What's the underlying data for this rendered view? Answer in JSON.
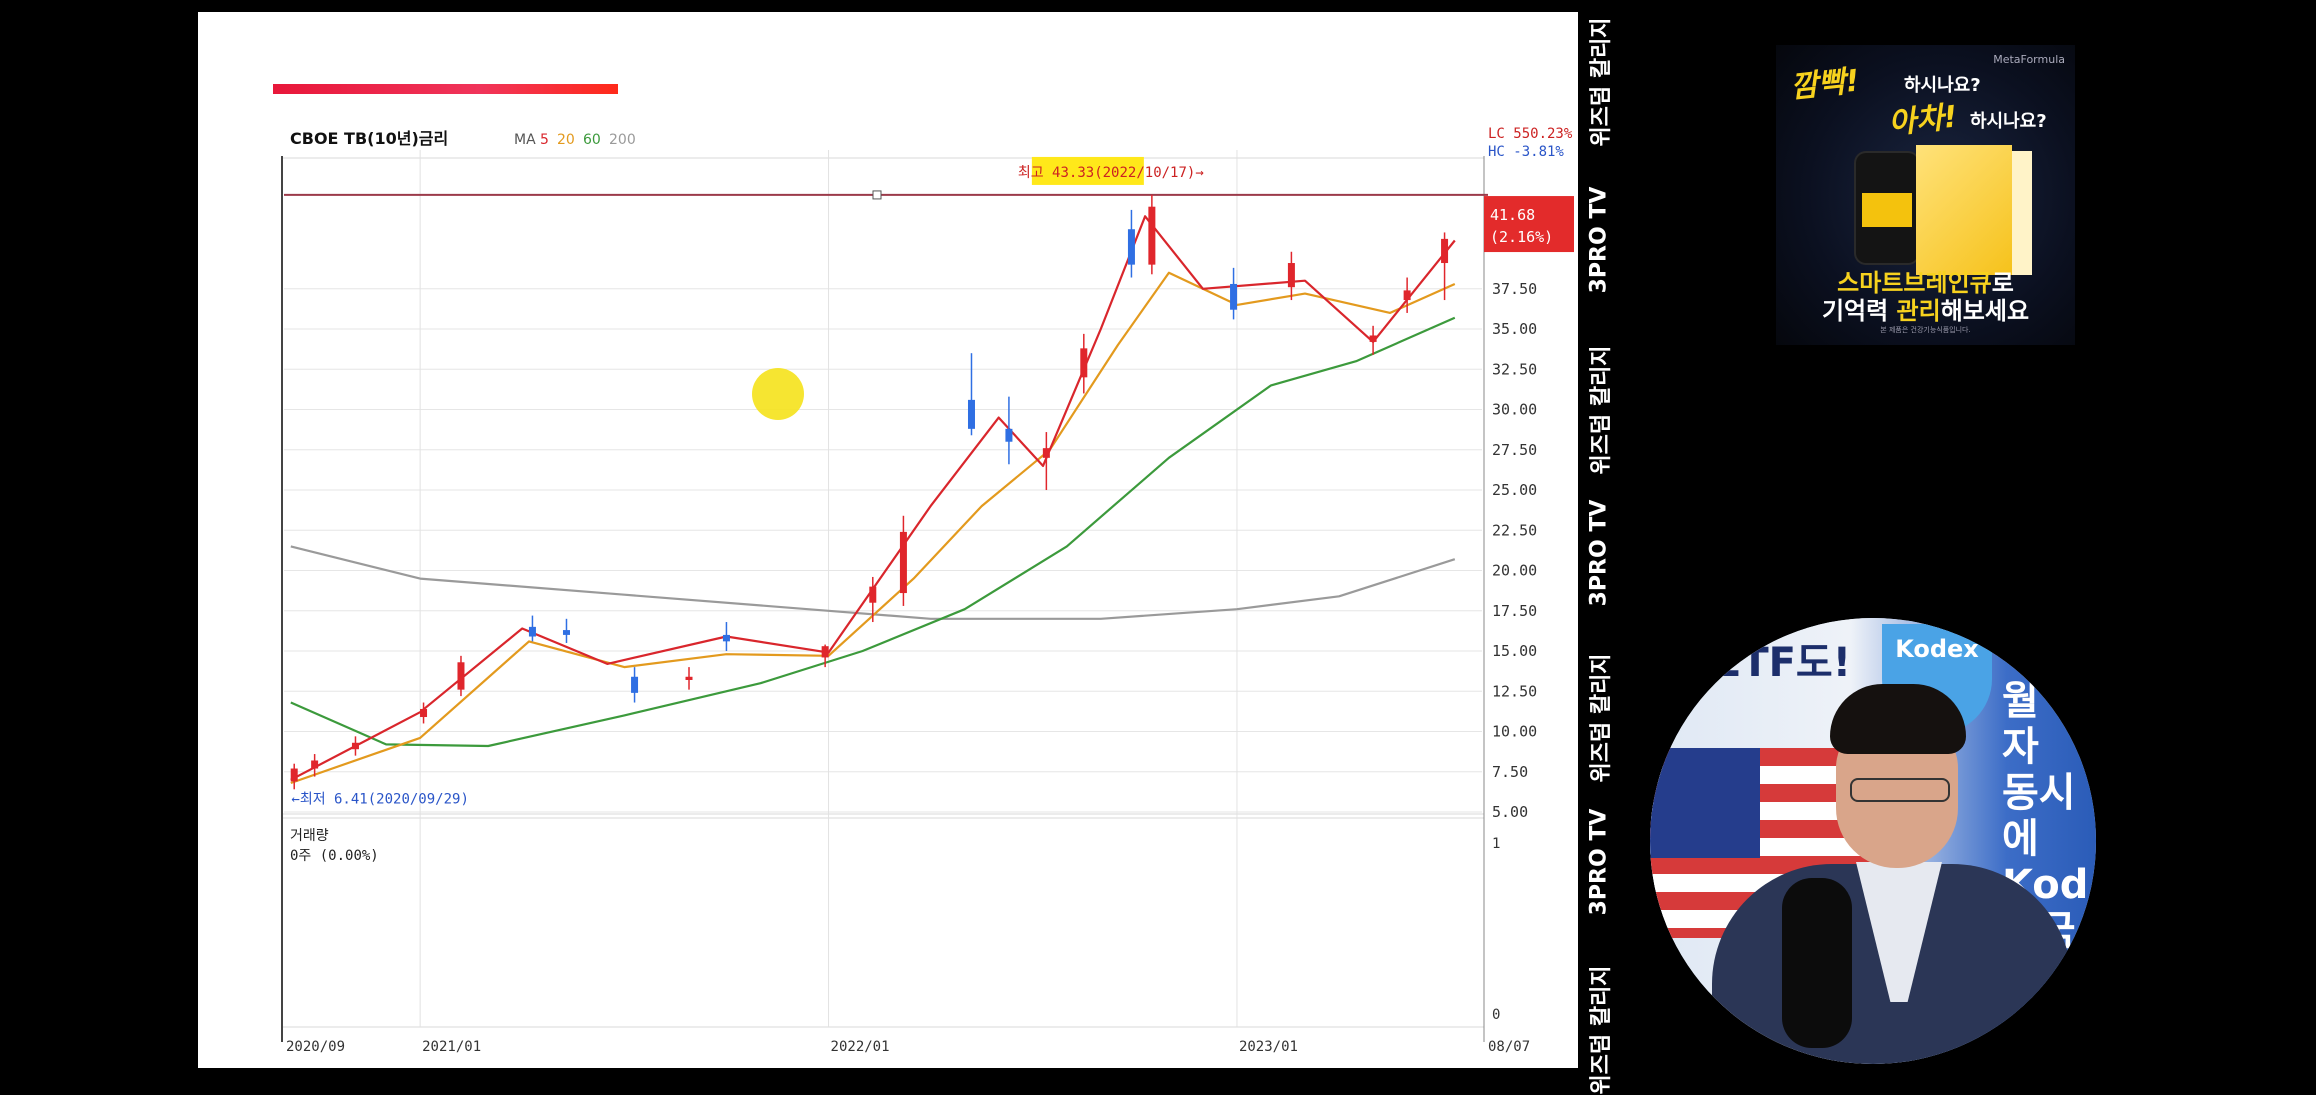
{
  "chart_data": {
    "type": "candlestick",
    "title": "CBOE TB(10년)금리",
    "moving_average_legend": {
      "label": "MA",
      "periods": [
        "5",
        "20",
        "60",
        "200"
      ],
      "colors": [
        "#d9262c",
        "#e39a1e",
        "#3c9a3c",
        "#9a9a9a"
      ]
    },
    "colors": {
      "up": "#e0262c",
      "down": "#2f6fe3",
      "ma5": "#d9262c",
      "ma20": "#e39a1e",
      "ma60": "#3c9a3c",
      "ma200": "#9a9a9a"
    },
    "y_axis": {
      "ticks": [
        "5.00",
        "7.50",
        "10.00",
        "12.50",
        "15.00",
        "17.50",
        "20.00",
        "22.50",
        "25.00",
        "27.50",
        "30.00",
        "32.50",
        "35.00",
        "37.50"
      ],
      "range": [
        5.0,
        45.5
      ],
      "side": "right",
      "grid": true
    },
    "x_axis": {
      "labels": [
        "2020/09",
        "2021/01",
        "2022/01",
        "2023/01",
        "08/07"
      ],
      "label_months": [
        0,
        4,
        16,
        28,
        35
      ]
    },
    "header_right": {
      "lc": "LC 550.23%",
      "hc": "HC -3.81%"
    },
    "last_price": {
      "value": "41.68",
      "change": "(2.16%)",
      "color": "#e32b2b"
    },
    "annotations": {
      "high": {
        "text": "최고 43.33(2022/10/17)→",
        "value": 43.33,
        "month": 25.5,
        "highlight": "#ffe81a"
      },
      "low": {
        "text": "←최저 6.41(2020/09/29)",
        "value": 6.41,
        "month": 0.1
      }
    },
    "resistance_line": {
      "value": 43.33,
      "color": "#9b3a4a"
    },
    "candles": [
      {
        "m": 0.3,
        "o": 6.9,
        "h": 8.0,
        "l": 6.41,
        "c": 7.7
      },
      {
        "m": 0.9,
        "o": 7.7,
        "h": 8.6,
        "l": 7.2,
        "c": 8.2
      },
      {
        "m": 2.1,
        "o": 8.9,
        "h": 9.7,
        "l": 8.5,
        "c": 9.3
      },
      {
        "m": 4.1,
        "o": 10.9,
        "h": 11.8,
        "l": 10.5,
        "c": 11.4
      },
      {
        "m": 5.2,
        "o": 12.6,
        "h": 14.7,
        "l": 12.2,
        "c": 14.3
      },
      {
        "m": 7.3,
        "o": 16.5,
        "h": 17.2,
        "l": 15.6,
        "c": 15.9
      },
      {
        "m": 8.3,
        "o": 16.3,
        "h": 17.0,
        "l": 15.5,
        "c": 16.0
      },
      {
        "m": 10.3,
        "o": 13.4,
        "h": 14.0,
        "l": 11.8,
        "c": 12.4
      },
      {
        "m": 11.9,
        "o": 13.2,
        "h": 14.0,
        "l": 12.6,
        "c": 13.4
      },
      {
        "m": 13.0,
        "o": 16.0,
        "h": 16.8,
        "l": 15.0,
        "c": 15.6
      },
      {
        "m": 15.9,
        "o": 14.6,
        "h": 15.4,
        "l": 14.0,
        "c": 15.3
      },
      {
        "m": 17.3,
        "o": 18.0,
        "h": 19.6,
        "l": 16.8,
        "c": 19.0
      },
      {
        "m": 18.2,
        "o": 18.6,
        "h": 23.4,
        "l": 17.8,
        "c": 22.4
      },
      {
        "m": 20.2,
        "o": 30.6,
        "h": 33.5,
        "l": 28.4,
        "c": 28.8
      },
      {
        "m": 21.3,
        "o": 28.8,
        "h": 30.8,
        "l": 26.6,
        "c": 28.0
      },
      {
        "m": 22.4,
        "o": 27.0,
        "h": 28.6,
        "l": 25.0,
        "c": 27.6
      },
      {
        "m": 23.5,
        "o": 32.0,
        "h": 34.7,
        "l": 31.0,
        "c": 33.8
      },
      {
        "m": 24.9,
        "o": 41.2,
        "h": 42.4,
        "l": 38.2,
        "c": 39.0
      },
      {
        "m": 25.5,
        "o": 39.0,
        "h": 43.33,
        "l": 38.4,
        "c": 42.6
      },
      {
        "m": 27.9,
        "o": 37.8,
        "h": 38.8,
        "l": 35.6,
        "c": 36.2
      },
      {
        "m": 29.6,
        "o": 37.6,
        "h": 39.8,
        "l": 36.8,
        "c": 39.1
      },
      {
        "m": 32.0,
        "o": 34.2,
        "h": 35.2,
        "l": 33.4,
        "c": 34.6
      },
      {
        "m": 33.0,
        "o": 36.8,
        "h": 38.2,
        "l": 36.0,
        "c": 37.4
      },
      {
        "m": 34.1,
        "o": 39.1,
        "h": 41.0,
        "l": 36.8,
        "c": 40.6
      }
    ],
    "ma5": [
      [
        0.2,
        7.0
      ],
      [
        4,
        11.2
      ],
      [
        7,
        16.4
      ],
      [
        9.5,
        14.2
      ],
      [
        13,
        15.9
      ],
      [
        16,
        14.9
      ],
      [
        19,
        24.0
      ],
      [
        21,
        29.5
      ],
      [
        22.3,
        26.5
      ],
      [
        24,
        35.0
      ],
      [
        25.3,
        42.0
      ],
      [
        27,
        37.5
      ],
      [
        30,
        38.0
      ],
      [
        32,
        34.2
      ],
      [
        34.4,
        40.5
      ]
    ],
    "ma20": [
      [
        0.2,
        6.8
      ],
      [
        4,
        9.6
      ],
      [
        7.2,
        15.6
      ],
      [
        10,
        14.0
      ],
      [
        13,
        14.8
      ],
      [
        16,
        14.7
      ],
      [
        18.5,
        19.5
      ],
      [
        20.5,
        24.0
      ],
      [
        22.5,
        27.5
      ],
      [
        24.5,
        34.0
      ],
      [
        26,
        38.5
      ],
      [
        28,
        36.5
      ],
      [
        30,
        37.2
      ],
      [
        32.5,
        36.0
      ],
      [
        34.4,
        37.8
      ]
    ],
    "ma60": [
      [
        0.2,
        11.8
      ],
      [
        3,
        9.2
      ],
      [
        6,
        9.1
      ],
      [
        10,
        11.0
      ],
      [
        14,
        13.0
      ],
      [
        17,
        15.0
      ],
      [
        20,
        17.6
      ],
      [
        23,
        21.5
      ],
      [
        26,
        27.0
      ],
      [
        29,
        31.5
      ],
      [
        31.5,
        33.0
      ],
      [
        34.4,
        35.7
      ]
    ],
    "ma200": [
      [
        0.2,
        21.5
      ],
      [
        4,
        19.5
      ],
      [
        10,
        18.5
      ],
      [
        16,
        17.5
      ],
      [
        19,
        17.0
      ],
      [
        24,
        17.0
      ],
      [
        28,
        17.6
      ],
      [
        31,
        18.4
      ],
      [
        34.4,
        20.7
      ]
    ],
    "volume_panel": {
      "title": "거래량",
      "value": "0주 (0.00%)",
      "axis_top": "1",
      "axis_bottom": "0"
    }
  },
  "ticker": {
    "labels": [
      "위즈덤 칼리지",
      "3PRO TV",
      "위즈덤 칼리지",
      "3PRO TV",
      "위즈덤 칼리지",
      "3PRO TV",
      "위즈덤 칼리지"
    ]
  },
  "ad": {
    "brand": "MetaFormula",
    "line1": "깜빡!",
    "line1_suffix": "하시나요?",
    "line2": "아차!",
    "line2_suffix": "하시나요?",
    "line3_highlight": "스마트브레인큐",
    "line3_suffix": "로",
    "line4_prefix": "기억력",
    "line4_highlight": "관리",
    "line4_suffix": "해보세요",
    "fine_print": "본 제품은 건강기능식품입니다."
  },
  "webcam": {
    "etf_text": "ETF도!",
    "kodex_text": "Kodex",
    "sign_lines": [
      "월",
      "자",
      "동시에",
      "Kod",
      "미국"
    ]
  }
}
